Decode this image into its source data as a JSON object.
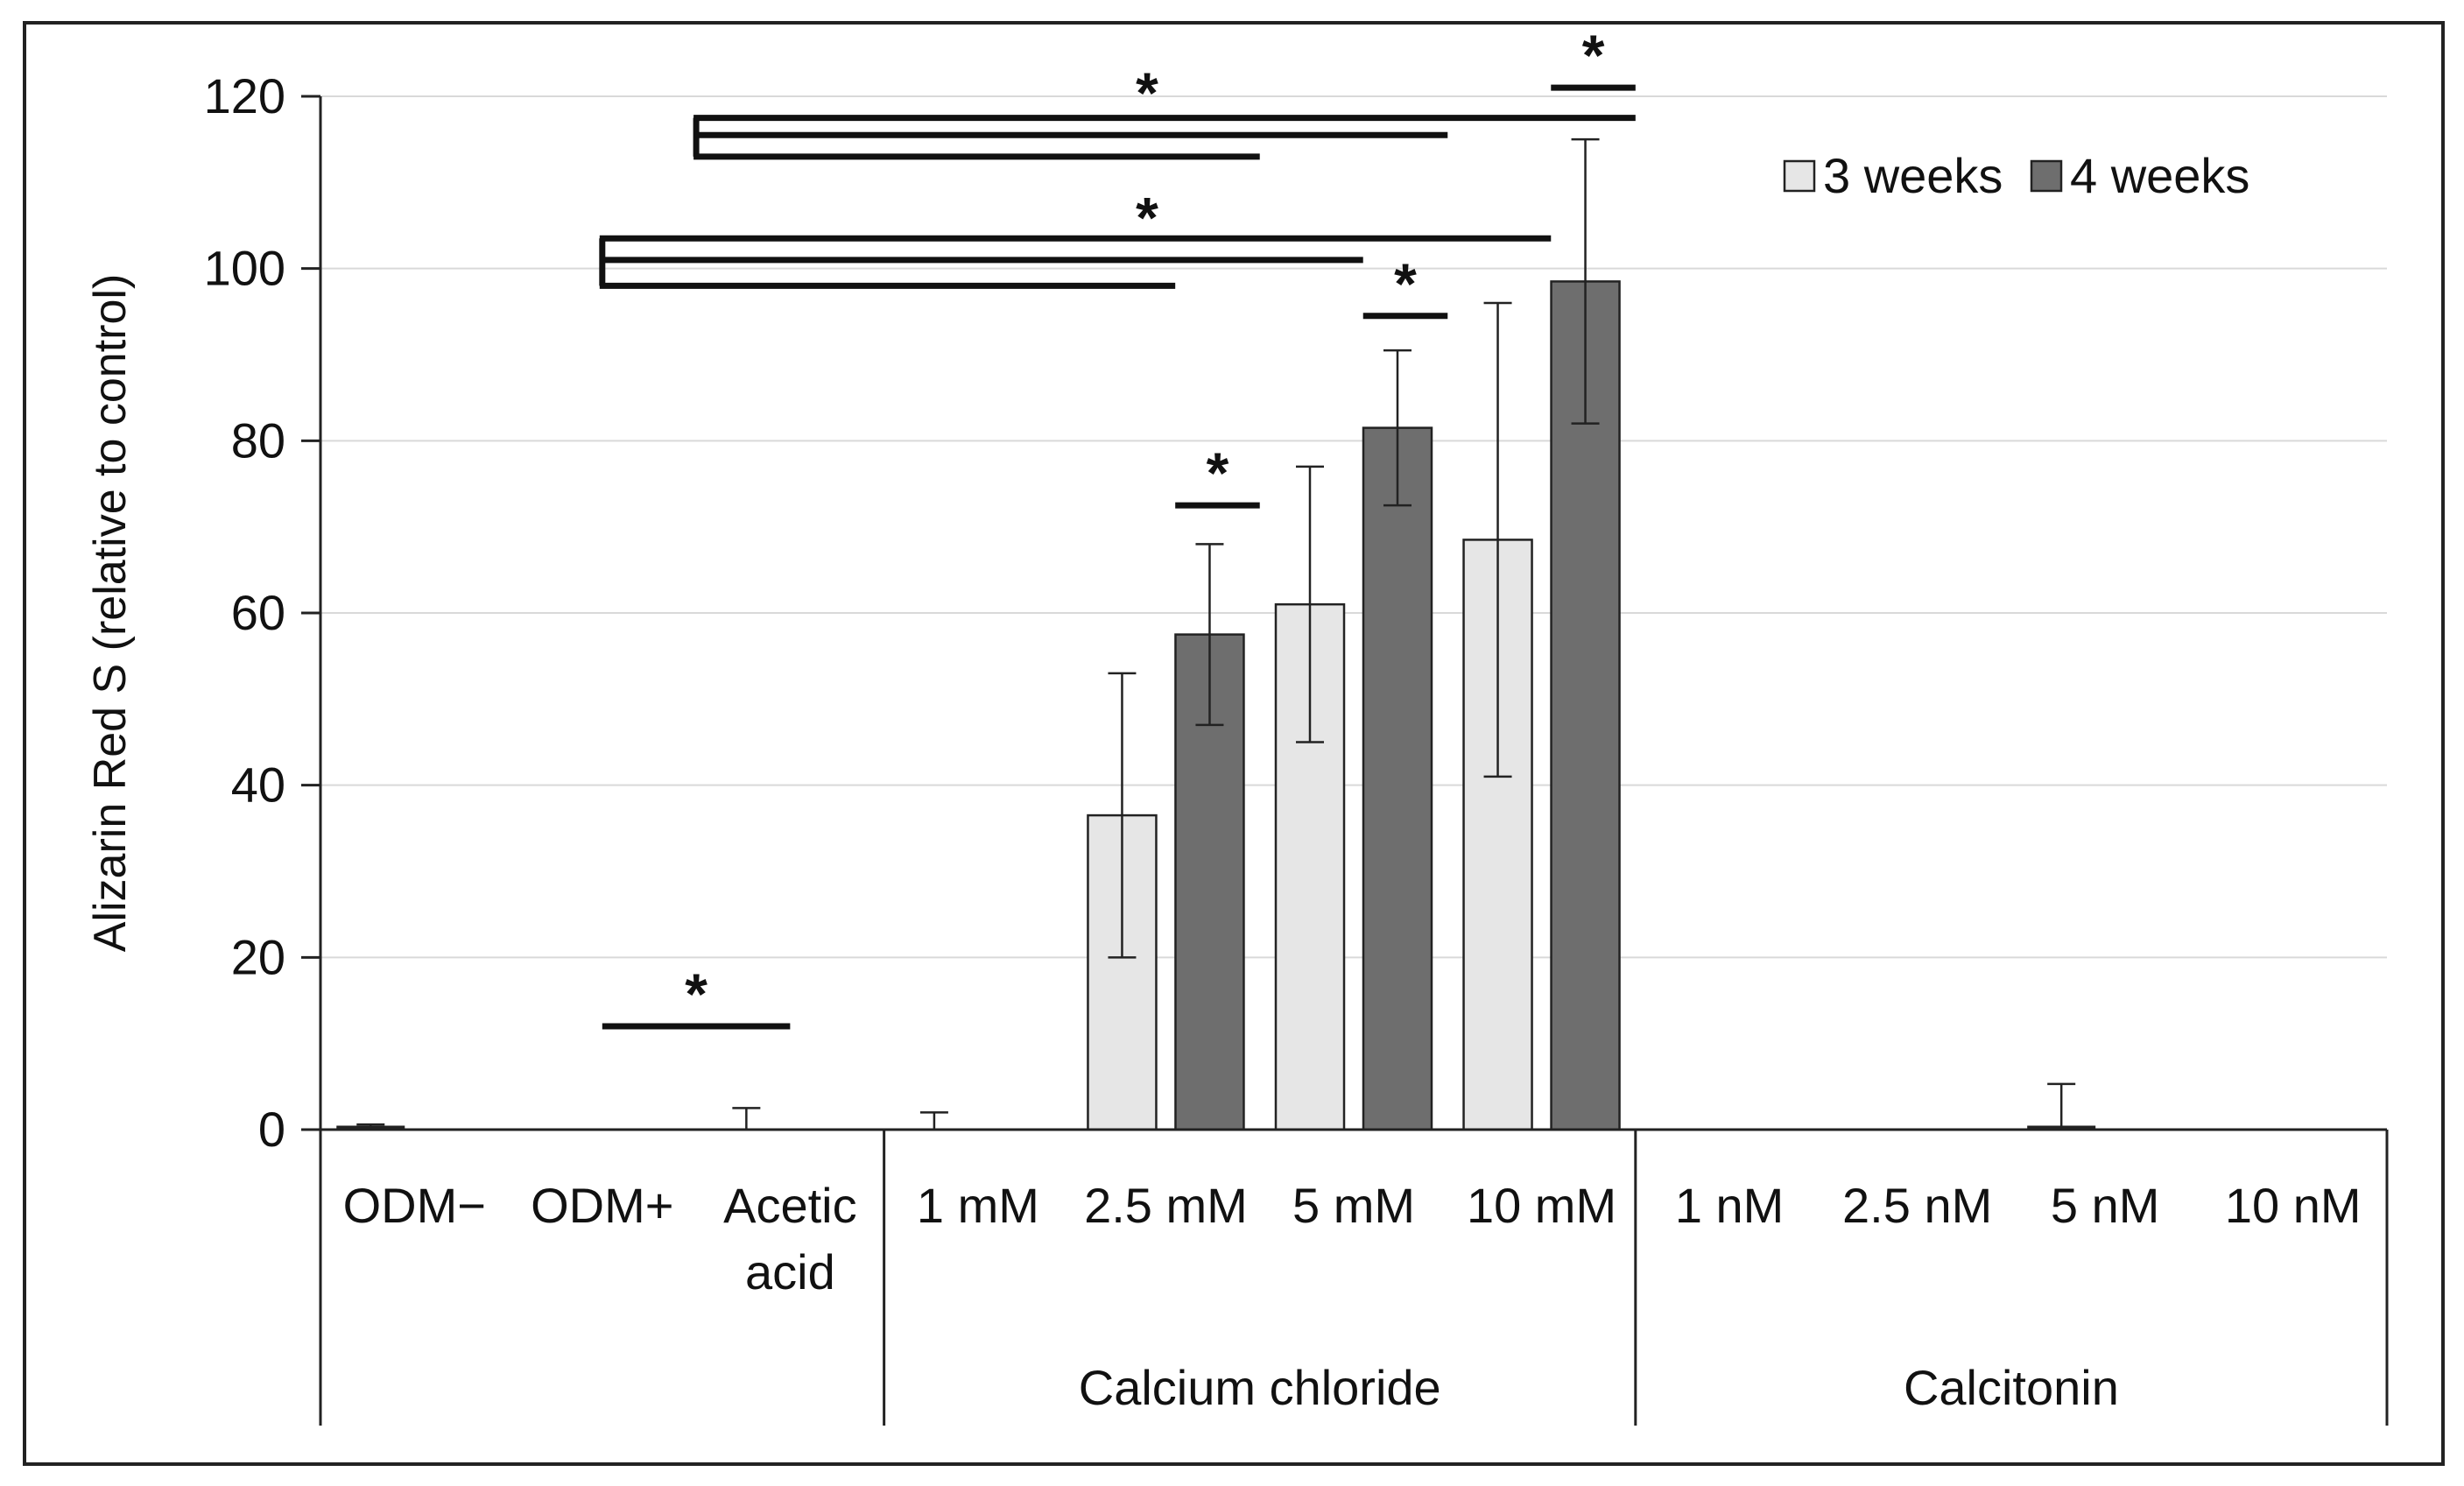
{
  "chart_data": {
    "type": "bar",
    "ylabel": "Alizarin Red S (relative to control)",
    "ylim": [
      0,
      120
    ],
    "yticks": [
      "0",
      "20",
      "40",
      "60",
      "80",
      "100",
      "120"
    ],
    "grid": true,
    "legend_position": "top-right",
    "categories": [
      "ODM−",
      "ODM+",
      "Acetic acid",
      "1 mM",
      "2.5 mM",
      "5 mM",
      "10 mM",
      "1 nM",
      "2.5 nM",
      "5 nM",
      "10 nM"
    ],
    "category_lines": [
      [
        "ODM−"
      ],
      [
        "ODM+"
      ],
      [
        "Acetic",
        "acid"
      ],
      [
        "1 mM"
      ],
      [
        "2.5 mM"
      ],
      [
        "5 mM"
      ],
      [
        "10 mM"
      ],
      [
        "1 nM"
      ],
      [
        "2.5 nM"
      ],
      [
        "5 nM"
      ],
      [
        "10 nM"
      ]
    ],
    "groups": [
      {
        "label": "",
        "start": 0,
        "end": 2
      },
      {
        "label": "Calcium chloride",
        "start": 3,
        "end": 6
      },
      {
        "label": "Calcitonin",
        "start": 7,
        "end": 10
      }
    ],
    "series": [
      {
        "name": "3 weeks",
        "color": "#e6e6e6",
        "values": [
          0.3,
          0,
          0,
          0,
          36.5,
          61,
          68.5,
          0,
          0,
          0.3,
          0
        ],
        "errors": [
          0.3,
          0,
          2.5,
          2,
          16.5,
          16,
          27.5,
          0,
          0,
          5,
          0
        ]
      },
      {
        "name": "4 weeks",
        "color": "#6e6e6e",
        "values": [
          0,
          0,
          0,
          0,
          57.5,
          81.5,
          98.5,
          0,
          0,
          0,
          0
        ],
        "errors": [
          0,
          0,
          0,
          0,
          10.5,
          9,
          16.5,
          0,
          0,
          0,
          0
        ]
      }
    ],
    "annotations": [
      {
        "text": "*",
        "type": "bar",
        "x_from": 1,
        "x_to": 2,
        "y": 12
      },
      {
        "text": "*",
        "type": "bar",
        "x_from": 4.05,
        "x_to": 4.5,
        "y": 72.5
      },
      {
        "text": "*",
        "type": "bar",
        "x_from": 5.05,
        "x_to": 5.5,
        "y": 94.5
      },
      {
        "text": "*",
        "type": "bar",
        "x_from": 6.05,
        "x_to": 6.5,
        "y": 121
      },
      {
        "text": "*",
        "type": "bracket",
        "x_left": 1.5,
        "y_top": 117.5,
        "y_bottom": 113,
        "lines": [
          {
            "x_to": 6.5,
            "y": 117.5
          },
          {
            "x_to": 5.5,
            "y": 115.5
          },
          {
            "x_to": 4.5,
            "y": 113
          }
        ],
        "star_x": 3.9,
        "star_y": 120.5
      },
      {
        "text": "*",
        "type": "bracket",
        "x_left": 1.0,
        "y_top": 103.5,
        "y_bottom": 98,
        "lines": [
          {
            "x_to": 6.05,
            "y": 103.5
          },
          {
            "x_to": 5.05,
            "y": 101
          },
          {
            "x_to": 4.05,
            "y": 98
          }
        ],
        "star_x": 3.9,
        "star_y": 106
      }
    ]
  }
}
